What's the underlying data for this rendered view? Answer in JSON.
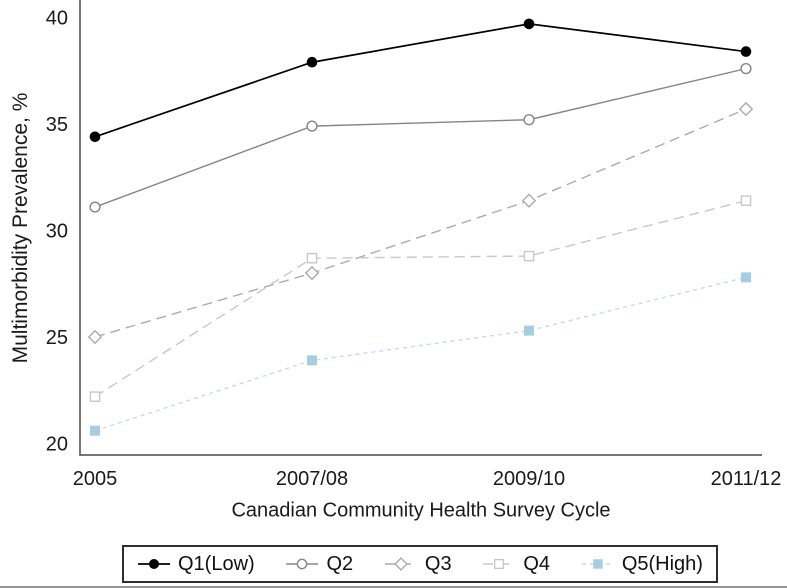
{
  "colors": {
    "axis": "#606060",
    "text": "#1a1a1a",
    "legend_border": "#2f2f2f",
    "bottom_rule": "#979797",
    "q5_blue": "#a6cee3"
  },
  "chart_data": {
    "type": "line",
    "title": "",
    "xlabel": "Canadian Community Health Survey Cycle",
    "ylabel": "Multimorbidity Prevalence, %",
    "categories": [
      "2005",
      "2007/08",
      "2009/10",
      "2011/12"
    ],
    "yticks": [
      40,
      35,
      30,
      25,
      20
    ],
    "ylim": [
      20,
      40
    ],
    "grid": false,
    "legend_position": "bottom",
    "series": [
      {
        "name": "Q1(Low)",
        "values": [
          34.4,
          37.9,
          39.7,
          38.4
        ],
        "color": "#000000",
        "marker": "filled-circle",
        "marker_color": "#000000",
        "dash": ""
      },
      {
        "name": "Q2",
        "values": [
          31.1,
          34.9,
          35.2,
          37.6
        ],
        "color": "#858585",
        "marker": "open-circle",
        "marker_color": "#858585",
        "dash": ""
      },
      {
        "name": "Q3",
        "values": [
          25.0,
          28.0,
          31.4,
          35.7
        ],
        "color": "#ababab",
        "marker": "open-diamond",
        "marker_color": "#ababab",
        "dash": "10,6"
      },
      {
        "name": "Q4",
        "values": [
          22.2,
          28.7,
          28.8,
          31.4
        ],
        "color": "#c8c8c8",
        "marker": "open-square",
        "marker_color": "#c8c8c8",
        "dash": "10,6"
      },
      {
        "name": "Q5(High)",
        "values": [
          20.6,
          23.9,
          25.3,
          27.8
        ],
        "color": "#c3dce8",
        "marker": "filled-square",
        "marker_color": "#a6cee3",
        "dash": "4,4"
      }
    ]
  }
}
